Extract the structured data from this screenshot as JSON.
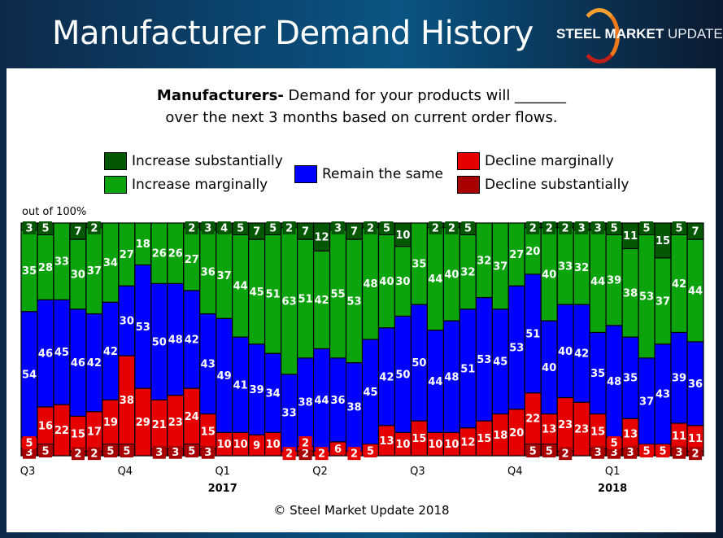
{
  "header": {
    "title": "Manufacturer Demand History",
    "logo_text_bold": "STEEL",
    "logo_text_mid": "MARKET",
    "logo_text_light": "UPDATE"
  },
  "footer": {
    "copyright": "© Steel Market Update 2018"
  },
  "chart_data": {
    "type": "bar",
    "stacked": true,
    "title_bold": "Manufacturers-",
    "title_line1": " Demand for your products will _______",
    "title_line2": "over the next 3 months based on current order flows.",
    "ylabel": "out of 100%",
    "ylim": [
      0,
      100
    ],
    "grid": false,
    "x_tick_labels": [
      {
        "bar": 0,
        "label": "Q3"
      },
      {
        "bar": 6,
        "label": "Q4"
      },
      {
        "bar": 12,
        "label": "Q1",
        "year": "2017"
      },
      {
        "bar": 18,
        "label": "Q2"
      },
      {
        "bar": 24,
        "label": "Q3"
      },
      {
        "bar": 30,
        "label": "Q4"
      },
      {
        "bar": 36,
        "label": "Q1",
        "year": "2018"
      }
    ],
    "series": [
      {
        "name": "Decline substantially",
        "color": "#a80000",
        "values": [
          3,
          5,
          0,
          2,
          2,
          5,
          5,
          0,
          3,
          3,
          5,
          3,
          0,
          0,
          0,
          0,
          0,
          2,
          0,
          0,
          0,
          0,
          0,
          0,
          0,
          0,
          0,
          0,
          0,
          0,
          0,
          5,
          5,
          2,
          0,
          3,
          3,
          3,
          0,
          0,
          3,
          2
        ]
      },
      {
        "name": "Decline marginally",
        "color": "#e60000",
        "values": [
          5,
          16,
          22,
          15,
          17,
          19,
          38,
          29,
          21,
          23,
          24,
          15,
          10,
          10,
          9,
          10,
          2,
          2,
          2,
          6,
          2,
          5,
          13,
          10,
          15,
          10,
          10,
          12,
          15,
          18,
          20,
          22,
          13,
          23,
          23,
          15,
          5,
          13,
          5,
          5,
          11,
          11
        ]
      },
      {
        "name": "Remain the same",
        "color": "#0000ff",
        "values": [
          54,
          46,
          45,
          46,
          42,
          42,
          30,
          53,
          50,
          48,
          42,
          43,
          49,
          41,
          39,
          34,
          33,
          38,
          44,
          36,
          38,
          45,
          42,
          50,
          50,
          44,
          48,
          51,
          53,
          45,
          53,
          51,
          40,
          40,
          42,
          35,
          48,
          35,
          37,
          43,
          39,
          36
        ]
      },
      {
        "name": "Increase marginally",
        "color": "#0ca40c",
        "values": [
          35,
          28,
          33,
          30,
          37,
          34,
          27,
          18,
          26,
          26,
          27,
          36,
          37,
          44,
          45,
          51,
          63,
          51,
          42,
          55,
          53,
          48,
          40,
          30,
          35,
          44,
          40,
          32,
          32,
          37,
          27,
          20,
          40,
          33,
          32,
          44,
          39,
          38,
          53,
          37,
          42,
          44
        ]
      },
      {
        "name": "Increase substantially",
        "color": "#045804",
        "values": [
          3,
          5,
          0,
          7,
          2,
          0,
          0,
          0,
          0,
          0,
          2,
          3,
          4,
          5,
          7,
          5,
          2,
          7,
          12,
          3,
          7,
          2,
          5,
          10,
          0,
          2,
          2,
          5,
          0,
          0,
          0,
          2,
          2,
          2,
          3,
          3,
          5,
          11,
          5,
          15,
          5,
          7
        ]
      }
    ]
  }
}
